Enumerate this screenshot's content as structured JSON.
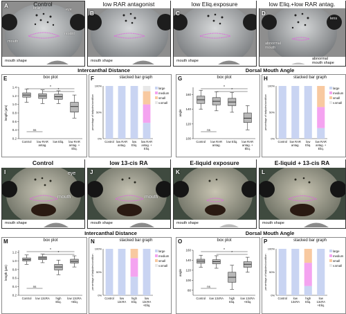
{
  "row1": {
    "panels": [
      {
        "letter": "A",
        "title": "Control",
        "shape_label": "mouth shape",
        "annotations": [
          "brain",
          "eye",
          "nostril",
          "mouth"
        ]
      },
      {
        "letter": "B",
        "title": "low RAR antagonist",
        "shape_label": "mouth shape",
        "annotations": []
      },
      {
        "letter": "C",
        "title": "low Eliq.exposure",
        "shape_label": "mouth shape",
        "annotations": []
      },
      {
        "letter": "D",
        "title": "low Eliq.+low RAR antag.",
        "shape_label": "abnormal\nmouth shape",
        "annotations": [
          "lens",
          "abnormal\nmouth"
        ]
      }
    ]
  },
  "row2": {
    "left_title": "Intercanthal Distance",
    "right_title": "Dorsal Mouth Angle",
    "E": {
      "letter": "E",
      "subtitle": "box plot",
      "ylabel": "length (µm)",
      "yticks": [
        "1.4",
        "1.2",
        "1.0",
        "0.8",
        "0.6",
        "0.4",
        "0.2"
      ],
      "categories": [
        "Control",
        "low RAR antag.",
        "low Eliq.",
        "low RAR antag. + Eliq."
      ],
      "ns": "ns",
      "ns2": "ns"
    },
    "F": {
      "letter": "F",
      "subtitle": "stacked bar graph",
      "ylabel": "percentage of tadpoles/condition",
      "categories": [
        "Control",
        "low RAR antag.",
        "low Eliq.",
        "low RAR antag. + Eliq."
      ],
      "legend": [
        "large",
        "medium",
        "small",
        "v.small"
      ],
      "yticks": [
        "100%",
        "50%",
        "0%"
      ]
    },
    "G": {
      "letter": "G",
      "subtitle": "box plot",
      "ylabel": "angle",
      "yticks": [
        "160",
        "140",
        "120",
        "100"
      ],
      "categories": [
        "Control",
        "low RAR antag.",
        "low Eliq.",
        "low RAR antag. + Eliq."
      ],
      "ns": "ns"
    },
    "H": {
      "letter": "H",
      "subtitle": "stacked bar graph",
      "ylabel": "percentage of tadpoles/condition",
      "categories": [
        "Control",
        "low RAR antag.",
        "low Eliq.",
        "low RAR antag. + Eliq."
      ],
      "legend": [
        "large",
        "medium",
        "small",
        "v.small"
      ],
      "yticks": [
        "100%",
        "50%",
        "0%"
      ]
    }
  },
  "row3": {
    "panels": [
      {
        "letter": "I",
        "title": "Control",
        "shape_label": "mouth shape",
        "annotations": [
          "eye",
          "mouth"
        ]
      },
      {
        "letter": "J",
        "title": "low 13-cis RA",
        "shape_label": "mouth shape",
        "annotations": [
          "mouth"
        ]
      },
      {
        "letter": "K",
        "title": "E-liquid exposure",
        "shape_label": "mouth shape",
        "annotations": []
      },
      {
        "letter": "L",
        "title": "E-liquid + 13-cis RA",
        "shape_label": "mouth shape",
        "annotations": []
      }
    ]
  },
  "row4": {
    "left_title": "Intercanthal Distance",
    "right_title": "Dorsal Mouth Angle",
    "M": {
      "letter": "M",
      "subtitle": "box plot",
      "ylabel": "length (µm)",
      "yticks": [
        "1.2",
        "1.0",
        "0.8",
        "0.6",
        "0.4",
        "0.2"
      ],
      "categories": [
        "Control",
        "low 13cRA",
        "high Eliq.",
        "low 13cRA +Eliq."
      ],
      "ns": "ns"
    },
    "N": {
      "letter": "N",
      "subtitle": "stacked bar graph",
      "ylabel": "percentage of tadpoles/condition",
      "categories": [
        "Control",
        "low 13cRA",
        "high Eliq.",
        "low 13cRA +Eliq."
      ],
      "legend": [
        "large",
        "medium",
        "small",
        "v.small"
      ],
      "yticks": [
        "100%",
        "50%",
        "0%"
      ]
    },
    "O": {
      "letter": "O",
      "subtitle": "box plot",
      "ylabel": "angle",
      "yticks": [
        "160",
        "140",
        "120",
        "100",
        "80"
      ],
      "categories": [
        "Control",
        "low 13cRA",
        "high Eliq.",
        "low 13cRA +Eliq."
      ],
      "ns": "ns"
    },
    "P": {
      "letter": "P",
      "subtitle": "stacked bar graph",
      "ylabel": "percentage of tadpoles/condition",
      "categories": [
        "Control",
        "low 13cRA",
        "high Eliq.",
        "low 13cRA +Eliq."
      ],
      "legend": [
        "large",
        "medium",
        "small",
        "v.small"
      ],
      "yticks": [
        "100%",
        "50%",
        "0%"
      ]
    }
  },
  "colors": {
    "large": "#c9d4f2",
    "medium": "#f4a3f0",
    "small": "#f8c9a0",
    "vsmall": "#e8e8e8",
    "box": "#b8b8b8",
    "mouth_outline": "#e060e0"
  },
  "chart_data": [
    {
      "type": "box",
      "panel": "E",
      "categories": [
        "Control",
        "low RAR antag.",
        "low Eliq.",
        "low RAR antag. + Eliq."
      ],
      "series": [
        {
          "values": [
            {
              "q1": 1.17,
              "median": 1.22,
              "q3": 1.27,
              "min": 1.05,
              "max": 1.36
            },
            {
              "q1": 1.14,
              "median": 1.2,
              "q3": 1.25,
              "min": 1.02,
              "max": 1.34
            },
            {
              "q1": 1.12,
              "median": 1.18,
              "q3": 1.24,
              "min": 1.02,
              "max": 1.32
            },
            {
              "q1": 0.82,
              "median": 0.95,
              "q3": 1.05,
              "min": 0.68,
              "max": 1.22
            }
          ]
        }
      ],
      "ylim": [
        0.2,
        1.4
      ]
    },
    {
      "type": "bar",
      "panel": "F",
      "categories": [
        "Control",
        "low RAR antag.",
        "low Eliq.",
        "low RAR antag. + Eliq."
      ],
      "series": [
        {
          "name": "large",
          "values": [
            100,
            100,
            100,
            30
          ]
        },
        {
          "name": "medium",
          "values": [
            0,
            0,
            0,
            35
          ]
        },
        {
          "name": "small",
          "values": [
            0,
            0,
            0,
            25
          ]
        },
        {
          "name": "v.small",
          "values": [
            0,
            0,
            0,
            10
          ]
        }
      ]
    },
    {
      "type": "box",
      "panel": "G",
      "categories": [
        "Control",
        "low RAR antag.",
        "low Eliq.",
        "low RAR antag. + Eliq."
      ],
      "series": [
        {
          "values": [
            {
              "q1": 148,
              "median": 153,
              "q3": 158,
              "min": 140,
              "max": 166
            },
            {
              "q1": 146,
              "median": 151,
              "q3": 156,
              "min": 138,
              "max": 164
            },
            {
              "q1": 145,
              "median": 150,
              "q3": 155,
              "min": 136,
              "max": 163
            },
            {
              "q1": 122,
              "median": 128,
              "q3": 135,
              "min": 112,
              "max": 145
            }
          ]
        }
      ],
      "ylim": [
        100,
        170
      ]
    },
    {
      "type": "bar",
      "panel": "H",
      "categories": [
        "Control",
        "low RAR antag.",
        "low Eliq.",
        "low RAR antag. + Eliq."
      ],
      "series": [
        {
          "name": "large",
          "values": [
            100,
            100,
            100,
            20
          ]
        },
        {
          "name": "medium",
          "values": [
            0,
            0,
            0,
            40
          ]
        },
        {
          "name": "small",
          "values": [
            0,
            0,
            0,
            40
          ]
        },
        {
          "name": "v.small",
          "values": [
            0,
            0,
            0,
            0
          ]
        }
      ]
    },
    {
      "type": "box",
      "panel": "M",
      "categories": [
        "Control",
        "low 13cRA",
        "high Eliq.",
        "low 13cRA +Eliq."
      ],
      "series": [
        {
          "values": [
            {
              "q1": 1.0,
              "median": 1.03,
              "q3": 1.07,
              "min": 0.92,
              "max": 1.14
            },
            {
              "q1": 1.03,
              "median": 1.07,
              "q3": 1.1,
              "min": 0.96,
              "max": 1.16
            },
            {
              "q1": 0.79,
              "median": 0.86,
              "q3": 0.92,
              "min": 0.68,
              "max": 1.02
            },
            {
              "q1": 0.95,
              "median": 0.99,
              "q3": 1.04,
              "min": 0.86,
              "max": 1.12
            }
          ]
        }
      ],
      "ylim": [
        0.2,
        1.25
      ]
    },
    {
      "type": "bar",
      "panel": "N",
      "categories": [
        "Control",
        "low 13cRA",
        "high Eliq.",
        "low 13cRA +Eliq."
      ],
      "series": [
        {
          "name": "large",
          "values": [
            100,
            100,
            40,
            100
          ]
        },
        {
          "name": "medium",
          "values": [
            0,
            0,
            40,
            0
          ]
        },
        {
          "name": "small",
          "values": [
            0,
            0,
            20,
            0
          ]
        },
        {
          "name": "v.small",
          "values": [
            0,
            0,
            0,
            0
          ]
        }
      ]
    },
    {
      "type": "box",
      "panel": "O",
      "categories": [
        "Control",
        "low 13cRA",
        "high Eliq.",
        "low 13cRA +Eliq."
      ],
      "series": [
        {
          "values": [
            {
              "q1": 134,
              "median": 138,
              "q3": 142,
              "min": 126,
              "max": 150
            },
            {
              "q1": 133,
              "median": 137,
              "q3": 141,
              "min": 124,
              "max": 149
            },
            {
              "q1": 96,
              "median": 106,
              "q3": 116,
              "min": 82,
              "max": 130
            },
            {
              "q1": 126,
              "median": 132,
              "q3": 137,
              "min": 116,
              "max": 146
            }
          ]
        }
      ],
      "ylim": [
        70,
        160
      ]
    },
    {
      "type": "bar",
      "panel": "P",
      "categories": [
        "Control",
        "low 13cRA",
        "high Eliq.",
        "low 13cRA +Eliq."
      ],
      "series": [
        {
          "name": "large",
          "values": [
            100,
            100,
            20,
            100
          ]
        },
        {
          "name": "medium",
          "values": [
            0,
            0,
            50,
            0
          ]
        },
        {
          "name": "small",
          "values": [
            0,
            0,
            30,
            0
          ]
        },
        {
          "name": "v.small",
          "values": [
            0,
            0,
            0,
            0
          ]
        }
      ]
    }
  ]
}
